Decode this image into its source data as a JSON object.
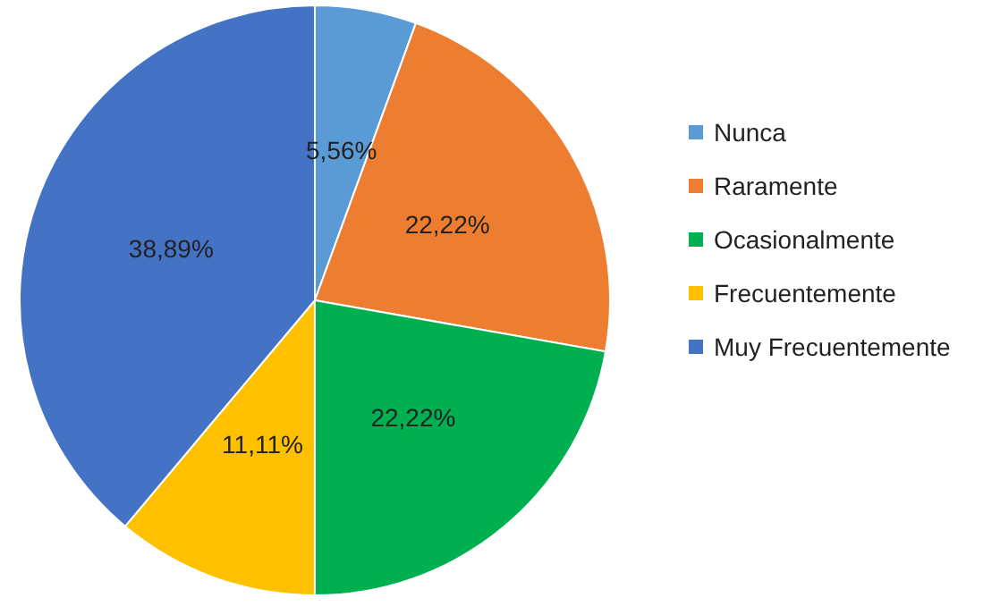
{
  "chart_data": {
    "type": "pie",
    "categories": [
      "Nunca",
      "Raramente",
      "Ocasionalmente",
      "Frecuentemente",
      "Muy Frecuentemente"
    ],
    "values": [
      5.56,
      22.22,
      22.22,
      11.11,
      38.89
    ],
    "colors": [
      "#5b9bd5",
      "#ed7d31",
      "#00b050",
      "#ffc000",
      "#4472c4"
    ],
    "value_labels": [
      "5,56%",
      "22,22%",
      "22,22%",
      "11,11%",
      "38,89%"
    ],
    "legend": "right"
  }
}
